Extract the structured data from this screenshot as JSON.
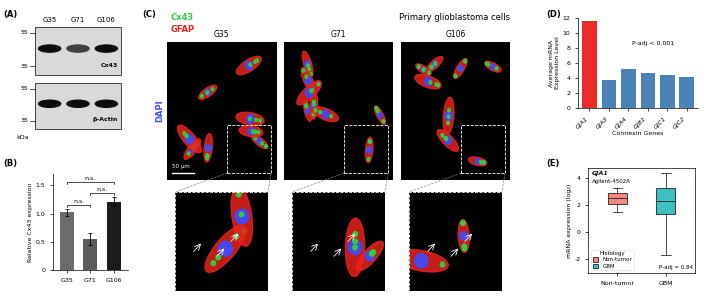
{
  "chart_data": [
    {
      "type": "bar",
      "panel": "(B)",
      "categories": [
        "G35",
        "G71",
        "G106"
      ],
      "values": [
        1.02,
        0.55,
        1.21
      ],
      "errors": [
        0.06,
        0.1,
        0.08
      ],
      "colors": [
        "#6b6b6b",
        "#5c5c5c",
        "#1c1c1c"
      ],
      "y_label": "Relative Cx43 expression",
      "ylim": [
        0,
        1.7
      ],
      "yticks": [
        0,
        0.5,
        {
          "value": 1.0,
          "label": "1.0"
        },
        1.5
      ],
      "comparisons": [
        {
          "pair": [
            "G35",
            "G71"
          ],
          "label": "n.s."
        },
        {
          "pair": [
            "G71",
            "G106"
          ],
          "label": "n.s."
        },
        {
          "pair": [
            "G35",
            "G106"
          ],
          "label": "n.s."
        }
      ]
    },
    {
      "type": "bar",
      "panel": "(D)",
      "categories": [
        "GJA1",
        "GJA3",
        "GJA4",
        "GJB1",
        "GJC1",
        "GJC2"
      ],
      "values": [
        11.6,
        3.7,
        5.2,
        4.7,
        4.4,
        4.1
      ],
      "colors": [
        "#ee2a24",
        "#4a82b8",
        "#4a82b8",
        "#4a82b8",
        "#4a82b8",
        "#4a82b8"
      ],
      "x_label": "Connexin Genes",
      "y_label": "Average mRNA\nExpression Level",
      "annotation": "P-adj < 0.001",
      "ylim": [
        0,
        12
      ],
      "yticks": [
        0,
        2,
        4,
        6,
        8,
        10,
        12
      ]
    },
    {
      "type": "box",
      "panel": "(E)",
      "title": "GJA1",
      "subtitle": "Agilent-4502A",
      "categories": [
        "Non-tumor",
        "GBM"
      ],
      "boxes": [
        {
          "whislo": 1.5,
          "q1": 2.05,
          "med": 2.5,
          "q3": 2.9,
          "whishi": 3.2
        },
        {
          "whislo": -1.7,
          "q1": 1.3,
          "med": 2.3,
          "q3": 3.2,
          "whishi": 4.3
        }
      ],
      "colors": [
        "#f4877f",
        "#3cc0c0"
      ],
      "y_label": "mRNA expression (log₂)",
      "annotation": "P-adj = 0.84",
      "legend": "lower left",
      "legend_title": "Histology",
      "ylim": [
        -3,
        4.7
      ],
      "yticks": [
        -2,
        0,
        2,
        4
      ]
    }
  ],
  "blot": {
    "panel": "(A)",
    "lanes": [
      "G35",
      "G71",
      "G106"
    ],
    "blots": [
      {
        "name": "Cx43",
        "markers": [
          55,
          35
        ]
      },
      {
        "name": "β-Actin",
        "markers": [
          55,
          35
        ]
      }
    ],
    "unit": "kDa"
  },
  "microscopy": {
    "panel": "(C)",
    "channels": [
      {
        "name": "Cx43",
        "color": "#2ecc40"
      },
      {
        "name": "GFAP",
        "color": "#e8231d"
      },
      {
        "name": "DAPI",
        "color": "#3b4cff"
      }
    ],
    "title": "Primary glioblastoma cells",
    "samples": [
      "G35",
      "G71",
      "G106"
    ],
    "scale_bar": "50 µm"
  }
}
